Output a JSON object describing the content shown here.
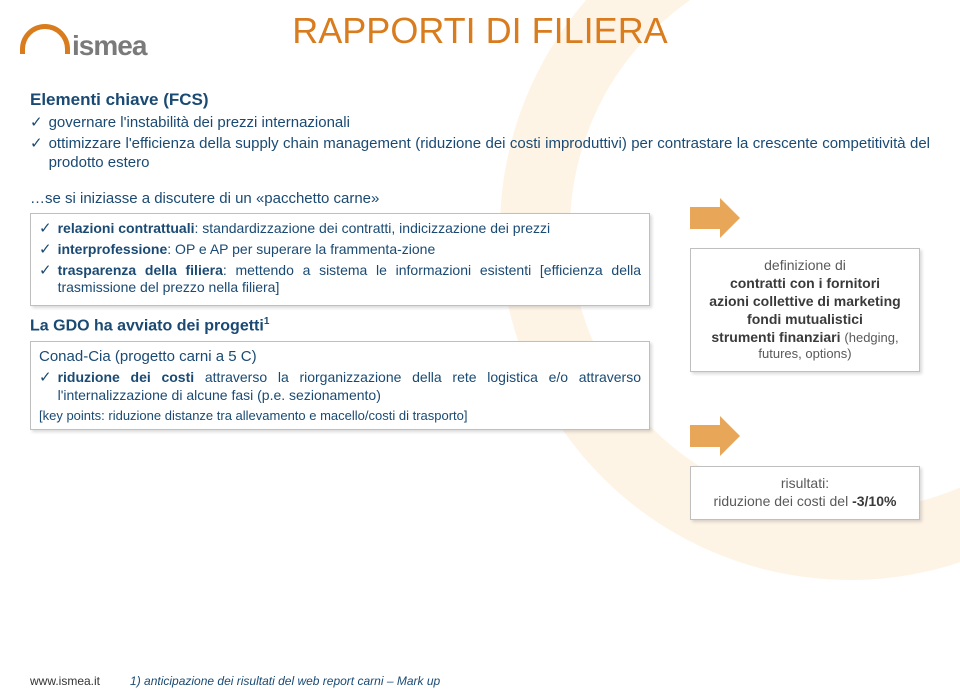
{
  "colors": {
    "accent": "#d97c1e",
    "text_blue": "#1a4a73",
    "bg_ring": "#fef4e6",
    "arrow": "#e8a758",
    "box_border": "#bfbfbf"
  },
  "logo": {
    "text": "ismea"
  },
  "title": "RAPPORTI DI FILIERA",
  "fcs": {
    "heading": "Elementi chiave (FCS)",
    "items": [
      "governare l'instabilità dei prezzi internazionali",
      "ottimizzare l'efficienza della supply chain management (riduzione dei costi improduttivi) per contrastare la crescente competitività del prodotto estero"
    ]
  },
  "box1": {
    "intro": "…se si iniziasse a discutere di un «pacchetto carne»",
    "items_html": [
      "<b>relazioni contrattuali</b>: standardizzazione dei contratti, indicizzazione dei prezzi",
      "<b>interprofessione</b>: OP e AP per superare la frammenta-zione",
      "<b>trasparenza della filiera</b>: mettendo a sistema le informazioni esistenti [efficienza della trasmissione del prezzo nella filiera]"
    ]
  },
  "gdo_heading_html": "La GDO ha avviato dei progetti<span class=\"sup\">1</span>",
  "box2": {
    "sub": "Conad-Cia (progetto carni a 5 C)",
    "items_html": [
      "<b>riduzione dei costi</b> attraverso la riorganizzazione della rete logistica e/o attraverso l'internalizzazione di alcune fasi (p.e. sezionamento)"
    ],
    "keypoints": "[key points: riduzione distanze tra allevamento e macello/costi di trasporto]"
  },
  "result1": {
    "lines_html": [
      "definizione di",
      "<span class=\"bold\">contratti con i fornitori</span>",
      "<span class=\"bold\">azioni collettive di marketing</span>",
      "<span class=\"bold\">fondi mutualistici</span>",
      "<span class=\"bold\">strumenti finanziari</span> <span class=\"sub\">(hedging, futures, options)</span>"
    ]
  },
  "result2": {
    "lines_html": [
      "risultati:",
      "riduzione dei costi del <span class=\"bold\">-3/10%</span>"
    ]
  },
  "footer": {
    "url": "www.ismea.it",
    "note": "1) anticipazione dei risultati del web report carni – Mark up"
  }
}
